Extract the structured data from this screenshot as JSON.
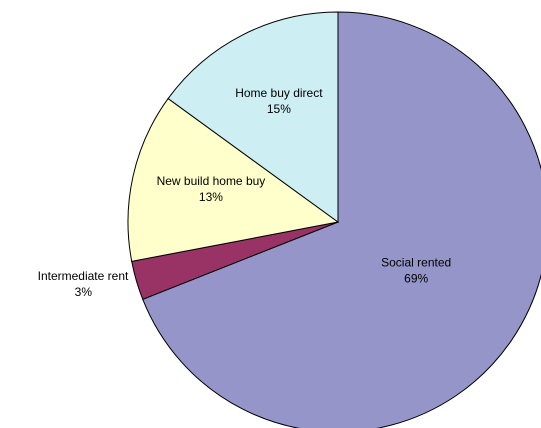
{
  "chart_data": {
    "type": "pie",
    "categories": [
      "Social rented",
      "Intermediate rent",
      "New build home buy",
      "Home buy direct"
    ],
    "values": [
      69,
      3,
      13,
      15
    ],
    "value_labels": [
      "69%",
      "3%",
      "13%",
      "15%"
    ],
    "colors": [
      "#9595c9",
      "#993366",
      "#ffffcc",
      "#cdeef3"
    ]
  }
}
